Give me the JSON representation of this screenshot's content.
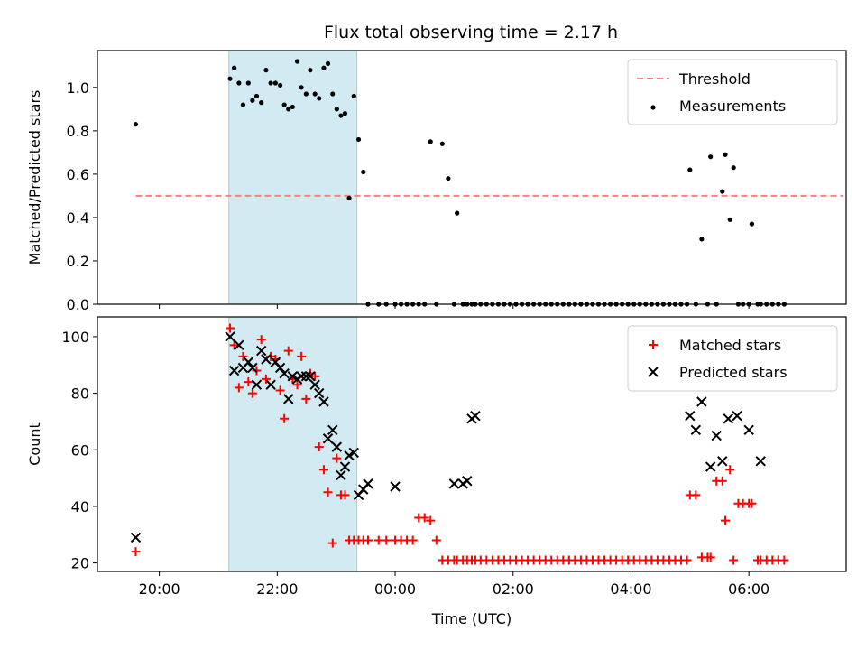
{
  "chart_data": [
    {
      "type": "scatter",
      "title": "Flux total observing time = 2.17 h",
      "xlabel": "",
      "ylabel": "Matched/Predicted stars",
      "xlim": [
        18.95,
        31.65
      ],
      "ylim": [
        0.0,
        1.17
      ],
      "x_ticks_hours": [
        20,
        22,
        24,
        26,
        28,
        30
      ],
      "y_ticks": [
        0.0,
        0.2,
        0.4,
        0.6,
        0.8,
        1.0
      ],
      "y_tick_labels": [
        "0.0",
        "0.2",
        "0.4",
        "0.6",
        "0.8",
        "1.0"
      ],
      "shaded_span_hours": [
        21.18,
        23.35
      ],
      "shaded_color": "#add8e6",
      "legend_position": "upper right",
      "threshold": {
        "name": "Threshold",
        "value": 0.5,
        "x_range": [
          19.6,
          31.6
        ],
        "color": "#ff7f7f",
        "style": "dashed"
      },
      "series": [
        {
          "name": "Measurements",
          "color": "#000000",
          "marker": "dot",
          "x": [
            19.6,
            21.2,
            21.27,
            21.35,
            21.42,
            21.51,
            21.58,
            21.65,
            21.73,
            21.81,
            21.89,
            21.97,
            22.05,
            22.12,
            22.19,
            22.26,
            22.34,
            22.41,
            22.49,
            22.56,
            22.64,
            22.71,
            22.79,
            22.86,
            22.94,
            23.01,
            23.08,
            23.15,
            23.22,
            23.3,
            23.38,
            23.46,
            23.54,
            23.72,
            23.85,
            24.0,
            24.1,
            24.2,
            24.3,
            24.4,
            24.5,
            24.6,
            24.7,
            24.8,
            24.9,
            25.0,
            25.05,
            25.15,
            25.22,
            25.3,
            25.36,
            25.45,
            25.55,
            25.65,
            25.75,
            25.85,
            25.95,
            26.05,
            26.15,
            26.25,
            26.35,
            26.45,
            26.55,
            26.65,
            26.75,
            26.85,
            26.95,
            27.05,
            27.15,
            27.25,
            27.35,
            27.45,
            27.55,
            27.65,
            27.75,
            27.85,
            27.95,
            28.05,
            28.15,
            28.25,
            28.35,
            28.45,
            28.55,
            28.65,
            28.75,
            28.85,
            28.95,
            29.0,
            29.1,
            29.2,
            29.3,
            29.35,
            29.45,
            29.55,
            29.6,
            29.68,
            29.74,
            29.82,
            29.9,
            30.0,
            30.05,
            30.15,
            30.2,
            30.3,
            30.4,
            30.5,
            30.6
          ],
          "y": [
            0.83,
            1.04,
            1.09,
            1.02,
            0.92,
            1.02,
            0.94,
            0.96,
            0.93,
            1.08,
            1.02,
            1.02,
            1.01,
            0.92,
            0.9,
            0.91,
            1.12,
            1.0,
            0.97,
            1.08,
            0.97,
            0.95,
            1.09,
            1.11,
            0.97,
            0.9,
            0.87,
            0.88,
            0.49,
            0.96,
            0.76,
            0.61,
            0.0,
            0.0,
            0.0,
            0.0,
            0.0,
            0.0,
            0.0,
            0.0,
            0.0,
            0.75,
            0.0,
            0.74,
            0.58,
            0.0,
            0.42,
            0.0,
            0.0,
            0.0,
            0.0,
            0.0,
            0.0,
            0.0,
            0.0,
            0.0,
            0.0,
            0.0,
            0.0,
            0.0,
            0.0,
            0.0,
            0.0,
            0.0,
            0.0,
            0.0,
            0.0,
            0.0,
            0.0,
            0.0,
            0.0,
            0.0,
            0.0,
            0.0,
            0.0,
            0.0,
            0.0,
            0.0,
            0.0,
            0.0,
            0.0,
            0.0,
            0.0,
            0.0,
            0.0,
            0.0,
            0.0,
            0.62,
            0.0,
            0.3,
            0.0,
            0.68,
            0.0,
            0.52,
            0.69,
            0.39,
            0.63,
            0.0,
            0.0,
            0.0,
            0.37,
            0.0,
            0.0,
            0.0,
            0.0,
            0.0,
            0.0
          ]
        }
      ]
    },
    {
      "type": "scatter",
      "title": "",
      "xlabel": "Time (UTC)",
      "ylabel": "Count",
      "xlim": [
        18.95,
        31.65
      ],
      "ylim": [
        17,
        107
      ],
      "x_ticks_hours": [
        20,
        22,
        24,
        26,
        28,
        30
      ],
      "x_tick_labels": [
        "20:00",
        "22:00",
        "00:00",
        "02:00",
        "04:00",
        "06:00"
      ],
      "y_ticks": [
        20,
        40,
        60,
        80,
        100
      ],
      "y_tick_labels": [
        "20",
        "40",
        "60",
        "80",
        "100"
      ],
      "shaded_span_hours": [
        21.18,
        23.35
      ],
      "shaded_color": "#add8e6",
      "legend_position": "upper right",
      "series": [
        {
          "name": "Matched stars",
          "color": "#ff0000",
          "marker": "plus",
          "x": [
            19.6,
            21.2,
            21.27,
            21.35,
            21.42,
            21.51,
            21.58,
            21.65,
            21.73,
            21.81,
            21.89,
            21.97,
            22.05,
            22.12,
            22.19,
            22.26,
            22.34,
            22.41,
            22.49,
            22.56,
            22.64,
            22.71,
            22.79,
            22.86,
            22.94,
            23.01,
            23.08,
            23.15,
            23.22,
            23.3,
            23.38,
            23.46,
            23.54,
            23.72,
            23.85,
            24.0,
            24.1,
            24.2,
            24.3,
            24.4,
            24.5,
            24.6,
            24.7,
            24.8,
            24.9,
            25.0,
            25.05,
            25.15,
            25.22,
            25.3,
            25.36,
            25.45,
            25.55,
            25.65,
            25.75,
            25.85,
            25.95,
            26.05,
            26.15,
            26.25,
            26.35,
            26.45,
            26.55,
            26.65,
            26.75,
            26.85,
            26.95,
            27.05,
            27.15,
            27.25,
            27.35,
            27.45,
            27.55,
            27.65,
            27.75,
            27.85,
            27.95,
            28.05,
            28.15,
            28.25,
            28.35,
            28.45,
            28.55,
            28.65,
            28.75,
            28.85,
            28.95,
            29.0,
            29.1,
            29.2,
            29.3,
            29.35,
            29.45,
            29.55,
            29.6,
            29.68,
            29.74,
            29.82,
            29.9,
            30.0,
            30.05,
            30.15,
            30.2,
            30.3,
            30.4,
            30.5,
            30.6
          ],
          "y": [
            24,
            103,
            97,
            82,
            93,
            84,
            80,
            88,
            99,
            85,
            93,
            92,
            81,
            71,
            95,
            85,
            83,
            93,
            78,
            87,
            86,
            61,
            53,
            45,
            27,
            57,
            44,
            44,
            28,
            28,
            28,
            28,
            28,
            28,
            28,
            28,
            28,
            28,
            28,
            36,
            36,
            35,
            28,
            21,
            21,
            21,
            21,
            21,
            21,
            21,
            21,
            21,
            21,
            21,
            21,
            21,
            21,
            21,
            21,
            21,
            21,
            21,
            21,
            21,
            21,
            21,
            21,
            21,
            21,
            21,
            21,
            21,
            21,
            21,
            21,
            21,
            21,
            21,
            21,
            21,
            21,
            21,
            21,
            21,
            21,
            21,
            21,
            44,
            44,
            22,
            22,
            22,
            49,
            49,
            35,
            53,
            21,
            41,
            41,
            41,
            41,
            21,
            21,
            21,
            21,
            21,
            21
          ]
        },
        {
          "name": "Predicted stars",
          "color": "#000000",
          "marker": "x",
          "x": [
            19.6,
            21.2,
            21.27,
            21.35,
            21.42,
            21.51,
            21.58,
            21.65,
            21.73,
            21.81,
            21.89,
            21.97,
            22.05,
            22.12,
            22.19,
            22.26,
            22.34,
            22.41,
            22.49,
            22.56,
            22.64,
            22.71,
            22.79,
            22.86,
            22.94,
            23.01,
            23.08,
            23.15,
            23.22,
            23.3,
            23.38,
            23.46,
            23.54,
            24.0,
            25.0,
            25.15,
            25.22,
            25.3,
            25.36,
            29.0,
            29.1,
            29.2,
            29.35,
            29.45,
            29.55,
            29.65,
            29.8,
            30.0,
            30.2
          ],
          "y": [
            29,
            100,
            88,
            97,
            89,
            91,
            89,
            83,
            95,
            92,
            83,
            91,
            89,
            87,
            78,
            86,
            85,
            86,
            86,
            86,
            83,
            80,
            77,
            64,
            67,
            61,
            51,
            54,
            58,
            59,
            44,
            46,
            48,
            47,
            48,
            48,
            49,
            71,
            72,
            72,
            67,
            77,
            54,
            65,
            56,
            71,
            72,
            67,
            56
          ]
        }
      ]
    }
  ]
}
